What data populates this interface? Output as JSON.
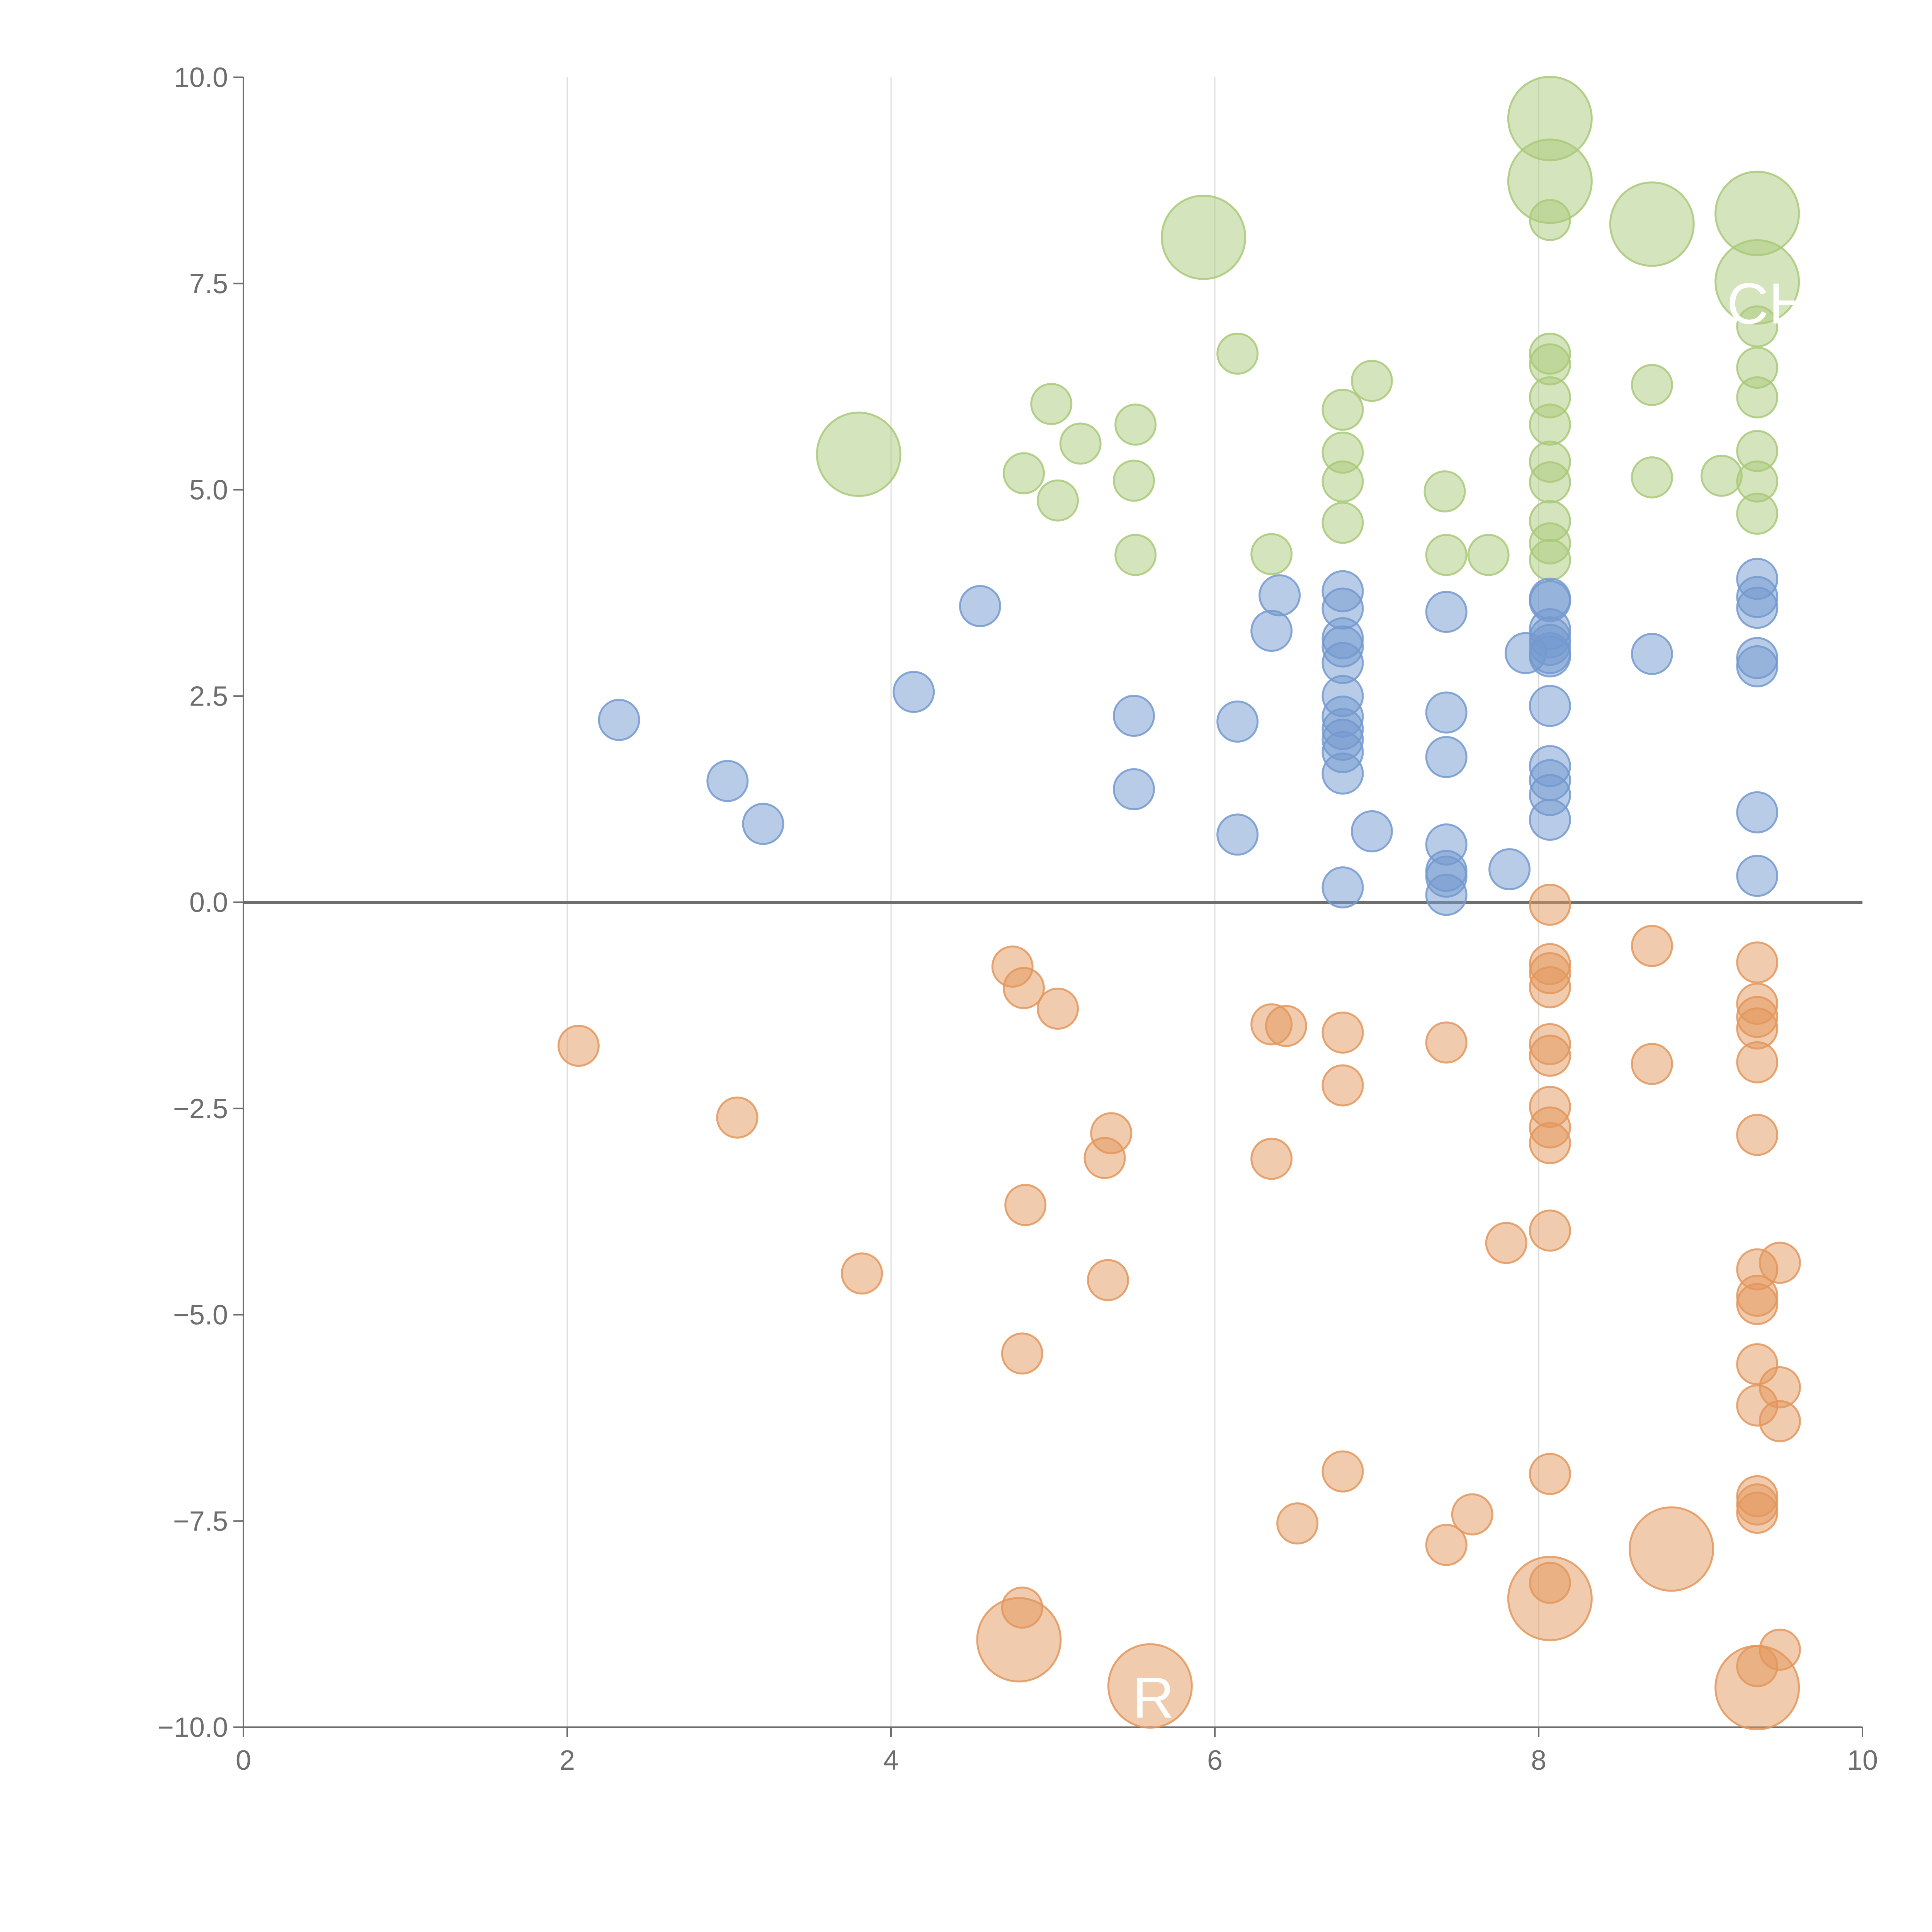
{
  "colors": {
    "positive_large": "#a9c979",
    "positive_small": "#a9c979",
    "negative": "#e3975c",
    "mid": "#7399cf",
    "axis": "#6e6e6e",
    "zero_line": "#6e6e6e",
    "grid": "#dcdcdc"
  },
  "chart_data": {
    "type": "scatter",
    "title": "",
    "xlabel": "",
    "ylabel": "",
    "xlim": [
      0,
      10
    ],
    "ylim": [
      -10,
      10
    ],
    "x_ticks": [
      {
        "v": 0,
        "label": "0"
      },
      {
        "v": 2,
        "label": "2"
      },
      {
        "v": 4,
        "label": "4"
      },
      {
        "v": 6,
        "label": "6"
      },
      {
        "v": 8,
        "label": "8"
      },
      {
        "v": 10,
        "label": "10"
      }
    ],
    "y_ticks": [
      {
        "v": 10,
        "label": "10.0"
      },
      {
        "v": 7.5,
        "label": "7.5"
      },
      {
        "v": 5,
        "label": "5.0"
      },
      {
        "v": 2.5,
        "label": "2.5"
      },
      {
        "v": 0,
        "label": "0.0"
      },
      {
        "v": -2.5,
        "label": "−2.5"
      },
      {
        "v": -5,
        "label": "−5.0"
      },
      {
        "v": -7.5,
        "label": "−7.5"
      },
      {
        "v": -10,
        "label": "−10.0"
      }
    ],
    "vertical_grid_at": [
      2,
      4,
      6,
      8
    ],
    "zero_line": true,
    "point_labels": [
      {
        "text": "R",
        "x": 5.62,
        "y": -9.65
      },
      {
        "text": "CHD",
        "x": 9.55,
        "y": 7.25
      }
    ],
    "series": [
      {
        "color_key": "positive_small",
        "points": [
          [
            6.14,
            6.65
          ],
          [
            4.99,
            6.04
          ],
          [
            5.51,
            5.79
          ],
          [
            5.17,
            5.56
          ],
          [
            4.82,
            5.2
          ],
          [
            5.03,
            4.87
          ],
          [
            5.5,
            5.11
          ],
          [
            5.51,
            4.21
          ],
          [
            6.35,
            4.22
          ],
          [
            6.97,
            6.32
          ],
          [
            6.79,
            5.97
          ],
          [
            6.79,
            5.45
          ],
          [
            6.79,
            5.1
          ],
          [
            6.79,
            4.6
          ],
          [
            7.42,
            4.98
          ],
          [
            7.43,
            4.21
          ],
          [
            7.69,
            4.21
          ],
          [
            8.07,
            8.27
          ],
          [
            8.07,
            6.65
          ],
          [
            8.07,
            6.52
          ],
          [
            8.07,
            6.12
          ],
          [
            8.07,
            5.79
          ],
          [
            8.07,
            5.34
          ],
          [
            8.07,
            5.09
          ],
          [
            8.07,
            4.62
          ],
          [
            8.07,
            4.35
          ],
          [
            8.07,
            4.15
          ],
          [
            8.7,
            6.27
          ],
          [
            8.7,
            5.15
          ],
          [
            9.13,
            5.17
          ],
          [
            9.35,
            6.98
          ],
          [
            9.35,
            6.48
          ],
          [
            9.35,
            6.12
          ],
          [
            9.35,
            5.47
          ],
          [
            9.35,
            5.1
          ],
          [
            9.35,
            4.71
          ]
        ],
        "size": "small"
      },
      {
        "color_key": "positive_large",
        "points": [
          [
            3.8,
            5.43
          ],
          [
            5.93,
            8.06
          ],
          [
            8.07,
            9.5
          ],
          [
            8.07,
            8.74
          ],
          [
            8.7,
            8.22
          ],
          [
            9.35,
            8.35
          ],
          [
            9.35,
            7.52
          ]
        ],
        "size": "large"
      },
      {
        "color_key": "mid",
        "points": [
          [
            2.32,
            2.21
          ],
          [
            2.99,
            1.47
          ],
          [
            3.21,
            0.95
          ],
          [
            4.14,
            2.55
          ],
          [
            4.55,
            3.59
          ],
          [
            5.5,
            2.26
          ],
          [
            5.5,
            1.37
          ],
          [
            6.14,
            2.19
          ],
          [
            6.14,
            0.82
          ],
          [
            6.4,
            3.72
          ],
          [
            6.35,
            3.29
          ],
          [
            6.79,
            3.77
          ],
          [
            6.79,
            3.56
          ],
          [
            6.79,
            3.2
          ],
          [
            6.79,
            3.1
          ],
          [
            6.79,
            2.9
          ],
          [
            6.79,
            2.5
          ],
          [
            6.79,
            2.25
          ],
          [
            6.79,
            2.1
          ],
          [
            6.79,
            1.97
          ],
          [
            6.79,
            1.82
          ],
          [
            6.79,
            1.56
          ],
          [
            6.79,
            0.18
          ],
          [
            6.97,
            0.86
          ],
          [
            7.43,
            3.52
          ],
          [
            7.43,
            2.3
          ],
          [
            7.43,
            1.76
          ],
          [
            7.43,
            0.7
          ],
          [
            7.43,
            0.38
          ],
          [
            7.43,
            0.31
          ],
          [
            7.43,
            0.09
          ],
          [
            7.82,
            0.4
          ],
          [
            7.92,
            3.02
          ],
          [
            8.07,
            3.68
          ],
          [
            8.07,
            3.65
          ],
          [
            8.07,
            3.31
          ],
          [
            8.07,
            3.21
          ],
          [
            8.07,
            3.12
          ],
          [
            8.07,
            3.02
          ],
          [
            8.07,
            2.98
          ],
          [
            8.07,
            2.38
          ],
          [
            8.07,
            1.65
          ],
          [
            8.07,
            1.48
          ],
          [
            8.07,
            1.3
          ],
          [
            8.07,
            1.0
          ],
          [
            8.7,
            3.01
          ],
          [
            9.35,
            3.92
          ],
          [
            9.35,
            3.7
          ],
          [
            9.35,
            3.57
          ],
          [
            9.35,
            2.96
          ],
          [
            9.35,
            2.86
          ],
          [
            9.35,
            1.09
          ],
          [
            9.35,
            0.32
          ]
        ],
        "size": "small"
      },
      {
        "color_key": "negative",
        "points": [
          [
            2.07,
            -1.74
          ],
          [
            3.05,
            -2.61
          ],
          [
            3.82,
            -4.5
          ],
          [
            4.75,
            -0.78
          ],
          [
            4.82,
            -1.04
          ],
          [
            5.03,
            -1.29
          ],
          [
            4.83,
            -3.67
          ],
          [
            5.36,
            -2.8
          ],
          [
            5.32,
            -3.1
          ],
          [
            5.34,
            -4.58
          ],
          [
            4.81,
            -5.47
          ],
          [
            4.81,
            -8.55
          ],
          [
            6.35,
            -1.48
          ],
          [
            6.44,
            -1.5
          ],
          [
            6.35,
            -3.11
          ],
          [
            6.51,
            -7.53
          ],
          [
            6.79,
            -1.58
          ],
          [
            6.79,
            -2.22
          ],
          [
            6.79,
            -6.9
          ],
          [
            7.43,
            -1.7
          ],
          [
            7.59,
            -7.42
          ],
          [
            7.43,
            -7.79
          ],
          [
            7.8,
            -4.13
          ],
          [
            8.07,
            -0.03
          ],
          [
            8.07,
            -0.75
          ],
          [
            8.07,
            -0.86
          ],
          [
            8.07,
            -1.03
          ],
          [
            8.07,
            -1.72
          ],
          [
            8.07,
            -1.86
          ],
          [
            8.07,
            -2.48
          ],
          [
            8.07,
            -2.73
          ],
          [
            8.07,
            -2.92
          ],
          [
            8.07,
            -3.98
          ],
          [
            8.07,
            -6.93
          ],
          [
            8.07,
            -8.25
          ],
          [
            8.7,
            -0.53
          ],
          [
            8.7,
            -1.96
          ],
          [
            9.35,
            -0.73
          ],
          [
            9.35,
            -1.23
          ],
          [
            9.35,
            -1.39
          ],
          [
            9.35,
            -1.53
          ],
          [
            9.35,
            -1.94
          ],
          [
            9.35,
            -2.82
          ],
          [
            9.49,
            -4.37
          ],
          [
            9.35,
            -4.45
          ],
          [
            9.35,
            -4.77
          ],
          [
            9.35,
            -4.87
          ],
          [
            9.35,
            -5.6
          ],
          [
            9.49,
            -5.88
          ],
          [
            9.35,
            -6.1
          ],
          [
            9.49,
            -6.29
          ],
          [
            9.35,
            -7.2
          ],
          [
            9.35,
            -7.3
          ],
          [
            9.35,
            -7.4
          ],
          [
            9.49,
            -9.06
          ],
          [
            9.35,
            -9.26
          ]
        ],
        "size": "small"
      },
      {
        "color_key": "negative",
        "points": [
          [
            4.79,
            -8.94
          ],
          [
            5.6,
            -9.5
          ],
          [
            8.07,
            -8.44
          ],
          [
            8.82,
            -7.84
          ],
          [
            9.35,
            -9.52
          ]
        ],
        "size": "large"
      }
    ]
  }
}
